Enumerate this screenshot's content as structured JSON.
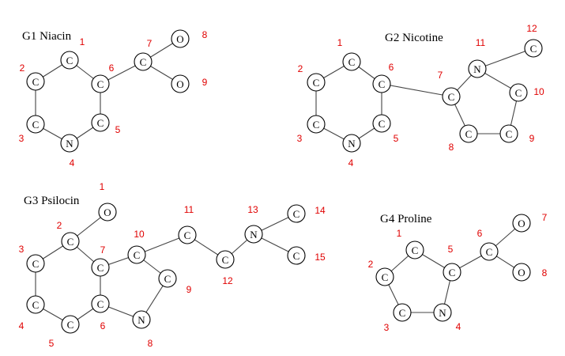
{
  "colors": {
    "index_label": "#e00000",
    "bond": "#444444",
    "atom_outline": "#000000"
  },
  "graphs": [
    {
      "id": "g1",
      "title": "G1 Niacin",
      "atoms": [
        {
          "n": "1",
          "el": "C"
        },
        {
          "n": "2",
          "el": "C"
        },
        {
          "n": "3",
          "el": "C"
        },
        {
          "n": "4",
          "el": "N"
        },
        {
          "n": "5",
          "el": "C"
        },
        {
          "n": "6",
          "el": "C"
        },
        {
          "n": "7",
          "el": "C"
        },
        {
          "n": "8",
          "el": "O"
        },
        {
          "n": "9",
          "el": "O"
        }
      ],
      "bonds": [
        [
          "1",
          "2"
        ],
        [
          "2",
          "3"
        ],
        [
          "3",
          "4"
        ],
        [
          "4",
          "5"
        ],
        [
          "5",
          "6"
        ],
        [
          "6",
          "1"
        ],
        [
          "6",
          "7"
        ],
        [
          "7",
          "8"
        ],
        [
          "7",
          "9"
        ]
      ]
    },
    {
      "id": "g2",
      "title": "G2 Nicotine",
      "atoms": [
        {
          "n": "1",
          "el": "C"
        },
        {
          "n": "2",
          "el": "C"
        },
        {
          "n": "3",
          "el": "C"
        },
        {
          "n": "4",
          "el": "N"
        },
        {
          "n": "5",
          "el": "C"
        },
        {
          "n": "6",
          "el": "C"
        },
        {
          "n": "7",
          "el": "C"
        },
        {
          "n": "8",
          "el": "C"
        },
        {
          "n": "9",
          "el": "C"
        },
        {
          "n": "10",
          "el": "C"
        },
        {
          "n": "11",
          "el": "N"
        },
        {
          "n": "12",
          "el": "C"
        }
      ],
      "bonds": [
        [
          "1",
          "2"
        ],
        [
          "2",
          "3"
        ],
        [
          "3",
          "4"
        ],
        [
          "4",
          "5"
        ],
        [
          "5",
          "6"
        ],
        [
          "6",
          "1"
        ],
        [
          "6",
          "7"
        ],
        [
          "7",
          "8"
        ],
        [
          "8",
          "9"
        ],
        [
          "9",
          "10"
        ],
        [
          "10",
          "11"
        ],
        [
          "11",
          "7"
        ],
        [
          "11",
          "12"
        ]
      ]
    },
    {
      "id": "g3",
      "title": "G3 Psilocin",
      "atoms": [
        {
          "n": "1",
          "el": "O"
        },
        {
          "n": "2",
          "el": "C"
        },
        {
          "n": "3",
          "el": "C"
        },
        {
          "n": "4",
          "el": "C"
        },
        {
          "n": "5",
          "el": "C"
        },
        {
          "n": "6",
          "el": "C"
        },
        {
          "n": "7",
          "el": "C"
        },
        {
          "n": "8",
          "el": "N"
        },
        {
          "n": "9",
          "el": "C"
        },
        {
          "n": "10",
          "el": "C"
        },
        {
          "n": "11",
          "el": "C"
        },
        {
          "n": "12",
          "el": "C"
        },
        {
          "n": "13",
          "el": "N"
        },
        {
          "n": "14",
          "el": "C"
        },
        {
          "n": "15",
          "el": "C"
        }
      ],
      "bonds": [
        [
          "1",
          "2"
        ],
        [
          "2",
          "3"
        ],
        [
          "3",
          "4"
        ],
        [
          "4",
          "5"
        ],
        [
          "5",
          "6"
        ],
        [
          "6",
          "7"
        ],
        [
          "7",
          "2"
        ],
        [
          "7",
          "10"
        ],
        [
          "10",
          "9"
        ],
        [
          "9",
          "8"
        ],
        [
          "8",
          "6"
        ],
        [
          "10",
          "11"
        ],
        [
          "11",
          "12"
        ],
        [
          "12",
          "13"
        ],
        [
          "13",
          "14"
        ],
        [
          "13",
          "15"
        ]
      ]
    },
    {
      "id": "g4",
      "title": "G4 Proline",
      "atoms": [
        {
          "n": "1",
          "el": "C"
        },
        {
          "n": "2",
          "el": "C"
        },
        {
          "n": "3",
          "el": "C"
        },
        {
          "n": "4",
          "el": "N"
        },
        {
          "n": "5",
          "el": "C"
        },
        {
          "n": "6",
          "el": "C"
        },
        {
          "n": "7",
          "el": "O"
        },
        {
          "n": "8",
          "el": "O"
        }
      ],
      "bonds": [
        [
          "1",
          "2"
        ],
        [
          "2",
          "3"
        ],
        [
          "3",
          "4"
        ],
        [
          "4",
          "5"
        ],
        [
          "5",
          "1"
        ],
        [
          "5",
          "6"
        ],
        [
          "6",
          "7"
        ],
        [
          "6",
          "8"
        ]
      ]
    }
  ]
}
